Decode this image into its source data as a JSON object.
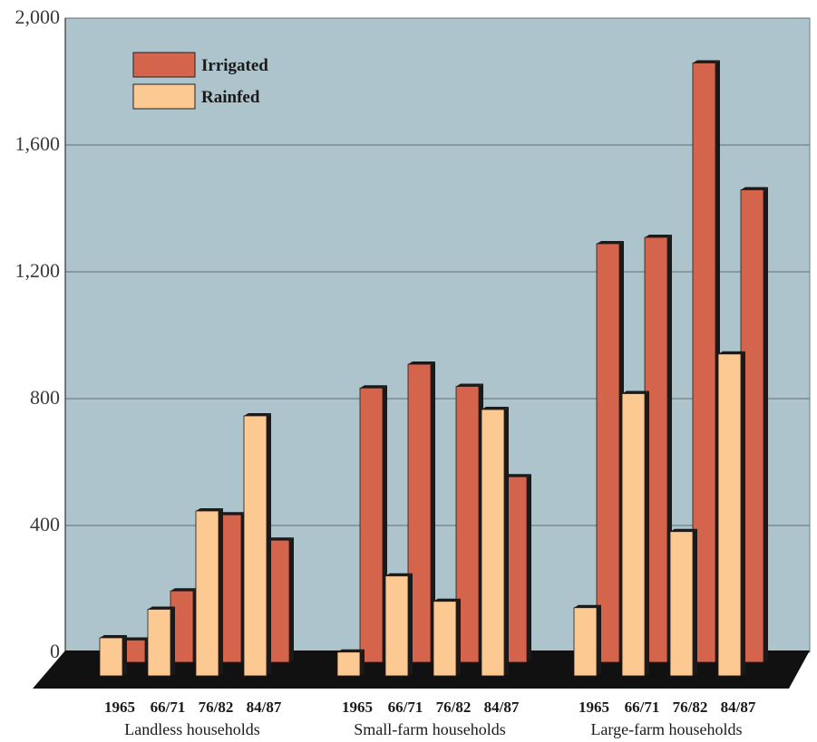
{
  "chart_data": {
    "type": "bar",
    "title": "",
    "xlabel": "",
    "ylabel": "",
    "ylim": [
      0,
      2000
    ],
    "y_ticks": [
      "0",
      "400",
      "800",
      "1,200",
      "1,600",
      "2,000"
    ],
    "y_tick_values": [
      0,
      400,
      800,
      1200,
      1600,
      2000
    ],
    "grid": true,
    "legend_position": "top-left",
    "colors": {
      "Irrigated": "#d4654c",
      "Rainfed": "#fcc992",
      "plot_background": "#adc4cc",
      "floor": "#111111"
    },
    "groups": [
      {
        "name": "Landless households",
        "categories": [
          "1965",
          "66/71",
          "76/82",
          "84/87"
        ],
        "series": [
          {
            "name": "Rainfed",
            "values": [
              120,
              210,
              520,
              820
            ]
          },
          {
            "name": "Irrigated",
            "values": [
              70,
              225,
              465,
              385
            ]
          }
        ]
      },
      {
        "name": "Small-farm households",
        "categories": [
          "1965",
          "66/71",
          "76/82",
          "84/87"
        ],
        "series": [
          {
            "name": "Rainfed",
            "values": [
              75,
              315,
              235,
              840
            ]
          },
          {
            "name": "Irrigated",
            "values": [
              865,
              940,
              870,
              585
            ]
          }
        ]
      },
      {
        "name": "Large-farm households",
        "categories": [
          "1965",
          "66/71",
          "76/82",
          "84/87"
        ],
        "series": [
          {
            "name": "Rainfed",
            "values": [
              215,
              890,
              455,
              1015
            ]
          },
          {
            "name": "Irrigated",
            "values": [
              1320,
              1340,
              1890,
              1490
            ]
          }
        ]
      }
    ],
    "legend": [
      "Irrigated",
      "Rainfed"
    ]
  }
}
